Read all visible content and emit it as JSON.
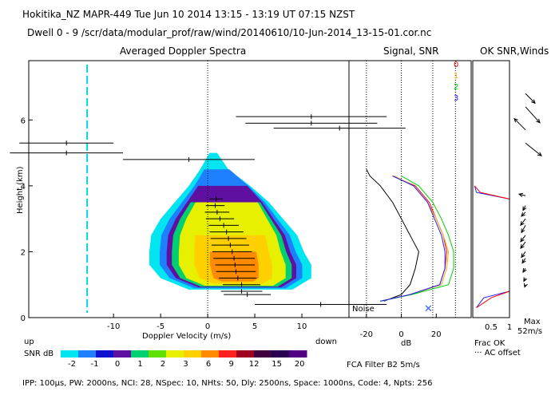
{
  "header": {
    "line1": "Hokitika_NZ  MAPR-449  Tue Jun 10 2014 13:15 - 13:19 UT 07:15 NZST",
    "line2": "Dwell  0 - 9   /scr/data/modular_prof/raw/wind/20140610/10-Jun-2014_13-15-01.cor.nc"
  },
  "footer": {
    "params": "IPP: 100µs,  PW: 2000ns,  NCI: 28,  NSpec: 10, NHts: 50,  Dly: 2500ns,  Space: 1000ns,  Code: 4,  Npts: 256",
    "fca": "FCA Filter B2  5m/s"
  },
  "colors": {
    "colorbar": [
      "#00e5f0",
      "#1f80ff",
      "#1010d0",
      "#6010a0",
      "#00d070",
      "#60e000",
      "#e6f000",
      "#ffd000",
      "#ff8a00",
      "#ff2020",
      "#a00020",
      "#400040",
      "#2a0050",
      "#500080"
    ],
    "curves": [
      "#ff0000",
      "#ffaa00",
      "#00d000",
      "#2020ff"
    ]
  },
  "chart_data": [
    {
      "id": "doppler",
      "type": "heatmap",
      "title": "Averaged Doppler Spectra",
      "xlabel": "Doppler Velocity (m/s)",
      "ylabel": "Height (km)",
      "xlim": [
        -19,
        15
      ],
      "ylim": [
        0,
        7.8
      ],
      "xticks": [
        -10,
        -5,
        0,
        5,
        10
      ],
      "yticks": [
        0,
        2,
        4,
        6
      ],
      "direction_left": "up",
      "direction_right": "down",
      "spectrum_envelope": [
        {
          "h": 0.85,
          "left": -2.0,
          "right": 9.0
        },
        {
          "h": 1.2,
          "left": -5.0,
          "right": 11.0
        },
        {
          "h": 1.6,
          "left": -6.2,
          "right": 11.0
        },
        {
          "h": 2.0,
          "left": -6.2,
          "right": 10.2
        },
        {
          "h": 2.5,
          "left": -6.0,
          "right": 9.5
        },
        {
          "h": 3.0,
          "left": -5.0,
          "right": 8.0
        },
        {
          "h": 3.5,
          "left": -3.5,
          "right": 6.5
        },
        {
          "h": 4.0,
          "left": -2.0,
          "right": 4.5
        },
        {
          "h": 4.5,
          "left": -0.8,
          "right": 2.2
        },
        {
          "h": 5.0,
          "left": 0.2,
          "right": 1.0
        }
      ],
      "noise_line_velocity": -12.8,
      "noise_label": "Noise",
      "moments": [
        {
          "h": 0.7,
          "mean": 4.2,
          "width": 2.5
        },
        {
          "h": 0.8,
          "mean": 3.6,
          "width": 2.2
        },
        {
          "h": 1.0,
          "mean": 3.6,
          "width": 2.0
        },
        {
          "h": 1.2,
          "mean": 3.2,
          "width": 2.0
        },
        {
          "h": 1.4,
          "mean": 3.0,
          "width": 2.1
        },
        {
          "h": 1.6,
          "mean": 2.9,
          "width": 2.1
        },
        {
          "h": 1.8,
          "mean": 2.8,
          "width": 2.2
        },
        {
          "h": 2.0,
          "mean": 2.6,
          "width": 2.1
        },
        {
          "h": 2.2,
          "mean": 2.4,
          "width": 2.0
        },
        {
          "h": 2.4,
          "mean": 2.2,
          "width": 1.9
        },
        {
          "h": 2.6,
          "mean": 2.0,
          "width": 1.8
        },
        {
          "h": 2.8,
          "mean": 1.7,
          "width": 1.6
        },
        {
          "h": 3.0,
          "mean": 1.3,
          "width": 1.5
        },
        {
          "h": 3.2,
          "mean": 1.0,
          "width": 1.3
        },
        {
          "h": 3.4,
          "mean": 0.8,
          "width": 1.0
        },
        {
          "h": 3.6,
          "mean": 0.9,
          "width": 0.7
        },
        {
          "h": 0.4,
          "mean": 12.0,
          "width": 7.0
        },
        {
          "h": 5.0,
          "mean": -15.0,
          "width": 6.0
        },
        {
          "h": 4.8,
          "mean": -2.0,
          "width": 7.0
        },
        {
          "h": 5.3,
          "mean": -15.0,
          "width": 5.0
        },
        {
          "h": 5.9,
          "mean": 11.0,
          "width": 7.0
        },
        {
          "h": 6.1,
          "mean": 11.0,
          "width": 8.0
        },
        {
          "h": 5.75,
          "mean": 14.0,
          "width": 7.0
        }
      ]
    },
    {
      "id": "signal",
      "type": "line",
      "title": "Signal, SNR",
      "xlabel": "dB",
      "xlim": [
        -30,
        40
      ],
      "ylim": [
        0,
        7.8
      ],
      "xticks": [
        -20,
        0,
        20
      ],
      "xtick_labels": [
        "-20",
        "0",
        "20"
      ],
      "ref_lines": [
        -20,
        0,
        18,
        31
      ],
      "legend": [
        "0",
        "1",
        "2",
        "3"
      ],
      "signal": {
        "h": [
          0.5,
          0.7,
          1.0,
          1.5,
          2.0,
          2.5,
          3.0,
          3.5,
          4.0,
          4.3,
          4.5
        ],
        "db": [
          -10,
          0,
          5,
          8,
          10,
          5,
          0,
          -5,
          -12,
          -18,
          -20
        ]
      },
      "snr": [
        {
          "h": [
            0.5,
            0.7,
            1.0,
            1.5,
            2.0,
            2.5,
            3.0,
            3.5,
            4.0,
            4.3
          ],
          "db": [
            -12,
            5,
            22,
            25,
            26,
            24,
            20,
            16,
            8,
            -5
          ]
        },
        {
          "h": [
            0.5,
            0.7,
            1.0,
            1.5,
            2.0,
            2.5,
            3.0,
            3.5,
            4.0,
            4.3
          ],
          "db": [
            -12,
            5,
            23,
            26,
            27,
            24,
            20,
            15,
            7,
            -4
          ]
        },
        {
          "h": [
            0.5,
            0.7,
            1.0,
            1.5,
            2.0,
            2.5,
            3.0,
            3.5,
            4.0,
            4.3
          ],
          "db": [
            -12,
            6,
            27,
            30,
            30,
            27,
            23,
            18,
            10,
            0
          ]
        },
        {
          "h": [
            0.5,
            0.7,
            1.0,
            1.5,
            2.0,
            2.5,
            3.0,
            3.5,
            4.0,
            4.3
          ],
          "db": [
            -12,
            5,
            22,
            25,
            25,
            23,
            19,
            15,
            7,
            -5
          ]
        }
      ]
    },
    {
      "id": "winds",
      "type": "scatter",
      "title": "OK SNR,Winds",
      "xlabel": "Frac OK",
      "xticks": [
        0.5,
        1
      ],
      "xtick_labels": [
        "0.5",
        "1"
      ],
      "ylim": [
        0,
        7.8
      ],
      "legend_ac": "··· AC offset",
      "max_label": "Max",
      "max_value": "52m/s",
      "frac_ok": [
        {
          "h": [
            0.3,
            0.6,
            0.8,
            3.6,
            3.8,
            4.0
          ],
          "v": [
            0.1,
            0.3,
            1.0,
            1.0,
            0.1,
            0.05
          ]
        },
        {
          "h": [
            0.3,
            0.6,
            0.8,
            3.6,
            3.8,
            4.0
          ],
          "v": [
            0.1,
            0.5,
            1.0,
            1.0,
            0.2,
            0.05
          ]
        }
      ],
      "winds": [
        {
          "h": 6.8,
          "u": 12,
          "v": -12
        },
        {
          "h": 6.4,
          "u": 18,
          "v": -20
        },
        {
          "h": 5.7,
          "u": -14,
          "v": 14
        },
        {
          "h": 5.3,
          "u": 20,
          "v": -16
        },
        {
          "h": 3.7,
          "u": -8,
          "v": 2
        },
        {
          "h": 3.4,
          "u": -3,
          "v": -6
        },
        {
          "h": 3.2,
          "u": -5,
          "v": -5
        },
        {
          "h": 3.0,
          "u": -6,
          "v": -8
        },
        {
          "h": 2.8,
          "u": -5,
          "v": -9
        },
        {
          "h": 2.5,
          "u": -6,
          "v": -8
        },
        {
          "h": 2.3,
          "u": -6,
          "v": -8
        },
        {
          "h": 2.0,
          "u": -5,
          "v": -7
        },
        {
          "h": 1.8,
          "u": -4,
          "v": -6
        },
        {
          "h": 1.5,
          "u": -3,
          "v": -5
        },
        {
          "h": 1.2,
          "u": -2,
          "v": -4
        },
        {
          "h": 1.0,
          "u": -1,
          "v": -3
        }
      ]
    },
    {
      "id": "colorbar",
      "type": "bar",
      "label": "SNR dB",
      "tick_labels": [
        "-2",
        "-1",
        "0",
        "1",
        "2",
        "3",
        "6",
        "9",
        "12",
        "15",
        "20"
      ]
    }
  ]
}
